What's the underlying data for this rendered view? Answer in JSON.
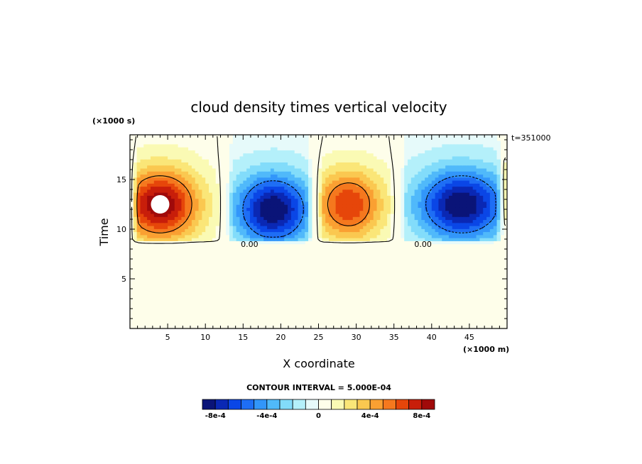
{
  "chart_data": {
    "type": "heatmap",
    "title": "cloud density times vertical velocity",
    "xlabel": "X coordinate",
    "ylabel": "Time",
    "x_unit_label": "(×1000 m)",
    "y_unit_label": "(×1000 s)",
    "time_stamp": "t=351000",
    "xlim": [
      0,
      50
    ],
    "ylim": [
      0,
      19.5
    ],
    "x_ticks": [
      5,
      10,
      15,
      20,
      25,
      30,
      35,
      40,
      45
    ],
    "y_ticks": [
      5,
      10,
      15
    ],
    "contour_interval_text": "CONTOUR INTERVAL = 5.000E-04",
    "contour_label": "0.00",
    "background_color": "#fefeea",
    "colorbar": {
      "colors": [
        "#0a1478",
        "#0a28b4",
        "#0a46e6",
        "#1e6ef5",
        "#3296fa",
        "#50b9fa",
        "#82dcfa",
        "#b4f0fa",
        "#e6fafa",
        "#fefeea",
        "#fafab4",
        "#fae678",
        "#fac850",
        "#faa032",
        "#f5781e",
        "#e6460a",
        "#c81e0a",
        "#a00a0a"
      ],
      "tick_labels": [
        "-8e-4",
        "-4e-4",
        "0",
        "4e-4",
        "8e-4"
      ],
      "tick_values": [
        -0.0008,
        -0.0004,
        0,
        0.0004,
        0.0008
      ],
      "range": [
        -0.0009,
        0.0009
      ]
    },
    "features": [
      {
        "sign": "positive",
        "x_range": [
          0,
          12.5
        ],
        "y_range": [
          8.5,
          19.5
        ],
        "peak_x": 4,
        "peak_y": 12.5,
        "peak_value": 0.0009
      },
      {
        "sign": "negative",
        "x_range": [
          12.5,
          24.5
        ],
        "y_range": [
          8.5,
          19.5
        ],
        "peak_x": 19,
        "peak_y": 12,
        "peak_value": -0.0009
      },
      {
        "sign": "positive",
        "x_range": [
          24.5,
          35.5
        ],
        "y_range": [
          8.5,
          19.5
        ],
        "peak_x": 29,
        "peak_y": 12.5,
        "peak_value": 0.0007
      },
      {
        "sign": "negative",
        "x_range": [
          35.5,
          49.7
        ],
        "y_range": [
          8.5,
          19.5
        ],
        "peak_x": 44,
        "peak_y": 12.5,
        "peak_value": -0.0009
      },
      {
        "sign": "positive",
        "x_range": [
          49.7,
          50
        ],
        "y_range": [
          10,
          17
        ],
        "peak_x": 50,
        "peak_y": 14,
        "peak_value": 0.0002
      }
    ],
    "grid": false
  }
}
